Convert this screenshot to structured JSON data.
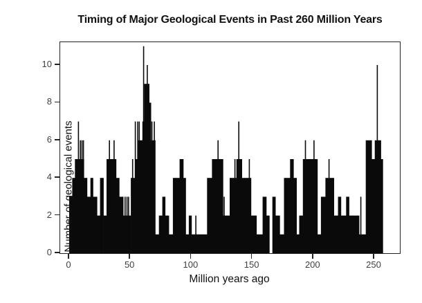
{
  "chart_data": {
    "type": "bar",
    "title": "Timing of Major Geological Events in Past 260 Million Years",
    "xlabel": "Million years ago",
    "ylabel": "Number of geological events",
    "x_ticks": [
      0,
      50,
      100,
      150,
      200,
      250
    ],
    "y_ticks": [
      0,
      2,
      4,
      6,
      8,
      10
    ],
    "xlim": [
      0,
      271
    ],
    "ylim": [
      0,
      11.2
    ],
    "grid": false,
    "legend": "none",
    "bar_color": "#0a0a0a",
    "frame_color": "#222222",
    "tick_label_color": "#3f3f3f",
    "bars": [
      {
        "from": 0,
        "to": 2.5,
        "h": 3
      },
      {
        "from": 2.5,
        "to": 4.7,
        "h": 4
      },
      {
        "from": 4.7,
        "to": 12,
        "h": 5
      },
      {
        "from": 12,
        "to": 14.6,
        "h": 4
      },
      {
        "from": 14.6,
        "to": 17.4,
        "h": 3
      },
      {
        "from": 17.4,
        "to": 19.5,
        "h": 4
      },
      {
        "from": 19.5,
        "to": 22.8,
        "h": 3
      },
      {
        "from": 22.8,
        "to": 25.3,
        "h": 2
      },
      {
        "from": 25.3,
        "to": 28.1,
        "h": 4
      },
      {
        "from": 28.1,
        "to": 30.6,
        "h": 2
      },
      {
        "from": 30.6,
        "to": 38.4,
        "h": 5
      },
      {
        "from": 38.4,
        "to": 41,
        "h": 4
      },
      {
        "from": 41,
        "to": 44.3,
        "h": 3
      },
      {
        "from": 44.3,
        "to": 50.5,
        "h": 2
      },
      {
        "from": 50.5,
        "to": 54,
        "h": 4
      },
      {
        "from": 54,
        "to": 56.5,
        "h": 5
      },
      {
        "from": 56.5,
        "to": 60,
        "h": 6
      },
      {
        "from": 60,
        "to": 61.5,
        "h": 7
      },
      {
        "from": 61.5,
        "to": 65.5,
        "h": 9
      },
      {
        "from": 65.5,
        "to": 67,
        "h": 8
      },
      {
        "from": 67,
        "to": 70.5,
        "h": 6
      },
      {
        "from": 70.5,
        "to": 73.5,
        "h": 1
      },
      {
        "from": 73.5,
        "to": 76.3,
        "h": 2
      },
      {
        "from": 76.3,
        "to": 78.6,
        "h": 3
      },
      {
        "from": 78.6,
        "to": 81.6,
        "h": 2
      },
      {
        "from": 81.6,
        "to": 85,
        "h": 1
      },
      {
        "from": 85,
        "to": 90.5,
        "h": 4
      },
      {
        "from": 90.5,
        "to": 93.5,
        "h": 5
      },
      {
        "from": 93.5,
        "to": 95.5,
        "h": 4
      },
      {
        "from": 95.5,
        "to": 98,
        "h": 1
      },
      {
        "from": 98,
        "to": 100.2,
        "h": 2
      },
      {
        "from": 100.2,
        "to": 113,
        "h": 1
      },
      {
        "from": 113,
        "to": 117,
        "h": 4
      },
      {
        "from": 117,
        "to": 126,
        "h": 5
      },
      {
        "from": 126,
        "to": 131.5,
        "h": 2
      },
      {
        "from": 131.5,
        "to": 137,
        "h": 4
      },
      {
        "from": 137,
        "to": 141.5,
        "h": 5
      },
      {
        "from": 141.5,
        "to": 149,
        "h": 4
      },
      {
        "from": 149,
        "to": 153.5,
        "h": 2
      },
      {
        "from": 153.5,
        "to": 158.5,
        "h": 1
      },
      {
        "from": 158.5,
        "to": 161.5,
        "h": 3
      },
      {
        "from": 161.5,
        "to": 164,
        "h": 2
      },
      {
        "from": 164,
        "to": 166.5,
        "h": 0
      },
      {
        "from": 166.5,
        "to": 169,
        "h": 3
      },
      {
        "from": 169,
        "to": 172.5,
        "h": 2
      },
      {
        "from": 172.5,
        "to": 176,
        "h": 1
      },
      {
        "from": 176,
        "to": 181,
        "h": 4
      },
      {
        "from": 181,
        "to": 183.8,
        "h": 5
      },
      {
        "from": 183.8,
        "to": 186.3,
        "h": 4
      },
      {
        "from": 186.3,
        "to": 188.5,
        "h": 1
      },
      {
        "from": 188.5,
        "to": 191.5,
        "h": 2
      },
      {
        "from": 191.5,
        "to": 203.4,
        "h": 5
      },
      {
        "from": 203.4,
        "to": 206.3,
        "h": 1
      },
      {
        "from": 206.3,
        "to": 210,
        "h": 3
      },
      {
        "from": 210,
        "to": 216.9,
        "h": 4
      },
      {
        "from": 216.9,
        "to": 220.3,
        "h": 2
      },
      {
        "from": 220.3,
        "to": 222.7,
        "h": 3
      },
      {
        "from": 222.7,
        "to": 226.9,
        "h": 2
      },
      {
        "from": 226.9,
        "to": 229.3,
        "h": 3
      },
      {
        "from": 229.3,
        "to": 237.5,
        "h": 2
      },
      {
        "from": 237.5,
        "to": 243,
        "h": 1
      },
      {
        "from": 243,
        "to": 247.8,
        "h": 6
      },
      {
        "from": 247.8,
        "to": 250.4,
        "h": 5
      },
      {
        "from": 250.4,
        "to": 255.4,
        "h": 6
      },
      {
        "from": 255.4,
        "to": 257,
        "h": 5
      }
    ],
    "spikes": [
      {
        "at": 7.6,
        "h": 7
      },
      {
        "at": 9.2,
        "h": 6
      },
      {
        "at": 10.5,
        "h": 6
      },
      {
        "at": 11.7,
        "h": 6
      },
      {
        "at": 33,
        "h": 6
      },
      {
        "at": 36.8,
        "h": 6
      },
      {
        "at": 45.8,
        "h": 3
      },
      {
        "at": 47.4,
        "h": 3
      },
      {
        "at": 48.7,
        "h": 3
      },
      {
        "at": 52,
        "h": 5
      },
      {
        "at": 54.2,
        "h": 7
      },
      {
        "at": 56.2,
        "h": 7
      },
      {
        "at": 57.4,
        "h": 7
      },
      {
        "at": 61,
        "h": 11
      },
      {
        "at": 64,
        "h": 10
      },
      {
        "at": 67.8,
        "h": 7
      },
      {
        "at": 69.8,
        "h": 7
      },
      {
        "at": 103.8,
        "h": 2
      },
      {
        "at": 122,
        "h": 6
      },
      {
        "at": 127,
        "h": 3
      },
      {
        "at": 135.8,
        "h": 5
      },
      {
        "at": 139,
        "h": 7
      },
      {
        "at": 147.6,
        "h": 5
      },
      {
        "at": 193.6,
        "h": 6
      },
      {
        "at": 200.6,
        "h": 6
      },
      {
        "at": 212.9,
        "h": 5
      },
      {
        "at": 239,
        "h": 3
      },
      {
        "at": 252.5,
        "h": 10
      }
    ]
  }
}
